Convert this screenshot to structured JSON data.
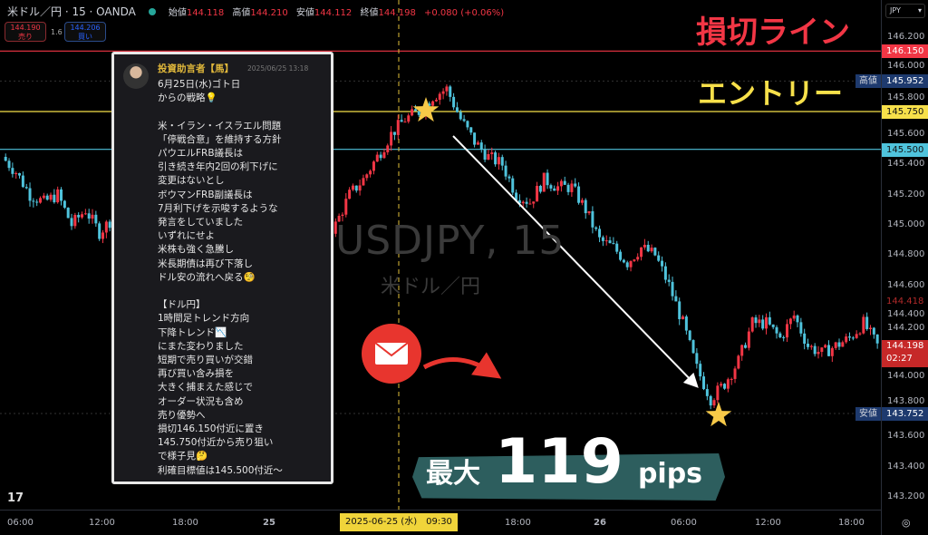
{
  "header": {
    "symbol": "米ドル／円 · 15 · OANDA",
    "open_label": "始値",
    "open": "144.118",
    "high_label": "高値",
    "high": "144.210",
    "low_label": "安値",
    "low": "144.112",
    "close_label": "終値",
    "close": "144.198",
    "change": "+0.080 (+0.06%)",
    "status_color": "#26a69a"
  },
  "trade": {
    "sell_price": "144.190",
    "sell_label": "売り",
    "spread": "1.6",
    "buy_price": "144.206",
    "buy_label": "買い"
  },
  "price_axis": {
    "currency": "JPY",
    "ticks": [
      "146.200",
      "146.000",
      "145.800",
      "145.600",
      "145.400",
      "145.200",
      "145.000",
      "144.800",
      "144.600",
      "144.400",
      "144.200",
      "144.000",
      "143.800",
      "143.600",
      "143.400",
      "143.200"
    ],
    "tags": {
      "stop": "146.150",
      "high": "145.952",
      "entry": "145.750",
      "target": "145.500",
      "prev": "144.418",
      "last": "144.198",
      "countdown": "02:27",
      "low": "143.752"
    },
    "high_label": "高値",
    "low_label": "安値"
  },
  "time_axis": {
    "ticks": [
      "06:00",
      "12:00",
      "18:00",
      "25",
      "18:00",
      "26",
      "06:00",
      "12:00",
      "18:00"
    ],
    "cursor": "2025-06-25 (水)　09:30"
  },
  "watermark": {
    "symbol": "USDJPY, 15",
    "name": "米ドル／円"
  },
  "annotations": {
    "stop_label": "損切ライン",
    "entry_label": "エントリー",
    "result_prefix": "最大",
    "result_value": "119",
    "result_unit": "pips"
  },
  "colors": {
    "stop": "#f23645",
    "entry": "#f7e04a",
    "target": "#4fc3dc",
    "up": "#f23645",
    "down": "#4fc3dc",
    "banner": "#2d5e5e"
  },
  "message": {
    "author": "投資助言者【馬】",
    "timestamp": "2025/06/25 13:18",
    "body": "6月25日(水)ゴト日\nからの戦略💡\n\n米・イラン・イスラエル問題\n「停戦合意」を維持する方針\nパウエルFRB議長は\n引き続き年内2回の利下げに\n変更はないとし\nボウマンFRB副議長は\n7月利下げを示唆するような\n発言をしていました\nいずれにせよ\n米株も強く急騰し\n米長期債は再び下落し\nドル安の流れへ戻る🧐\n\n【ドル円】\n1時間足トレンド方向\n下降トレンド📉\nにまた変わりました\n短期で売り買いが交錯\n再び買い含み損を\n大きく捕まえた感じで\nオーダー状況も含め\n売り優勢へ\n損切146.150付近に置き\n145.750付近から売り狙い\nで様子見🤔\n利確目標値は145.500付近～"
  },
  "chart_data": {
    "type": "candlestick",
    "symbol": "USDJPY",
    "interval": "15m",
    "ylim": [
      143.2,
      146.2
    ],
    "hourly_closes": [
      145.45,
      145.35,
      145.2,
      145.15,
      145.2,
      145.0,
      145.1,
      144.95,
      145.05,
      144.9,
      144.95,
      144.9,
      144.85,
      144.9,
      144.8,
      144.85,
      144.9,
      144.8,
      144.75,
      144.8,
      144.85,
      144.9,
      144.95,
      144.9,
      145.0,
      145.2,
      145.3,
      145.45,
      145.6,
      145.7,
      145.75,
      145.85,
      145.9,
      145.7,
      145.55,
      145.45,
      145.4,
      145.2,
      145.15,
      145.3,
      145.25,
      145.25,
      145.1,
      144.9,
      144.85,
      144.75,
      144.85,
      144.8,
      144.6,
      144.35,
      144.05,
      143.85,
      143.95,
      144.1,
      144.35,
      144.35,
      144.25,
      144.4,
      144.2,
      144.15,
      144.2,
      144.25,
      144.35,
      144.2
    ],
    "lines": {
      "stop": 146.15,
      "entry": 145.75,
      "target": 145.5
    }
  }
}
